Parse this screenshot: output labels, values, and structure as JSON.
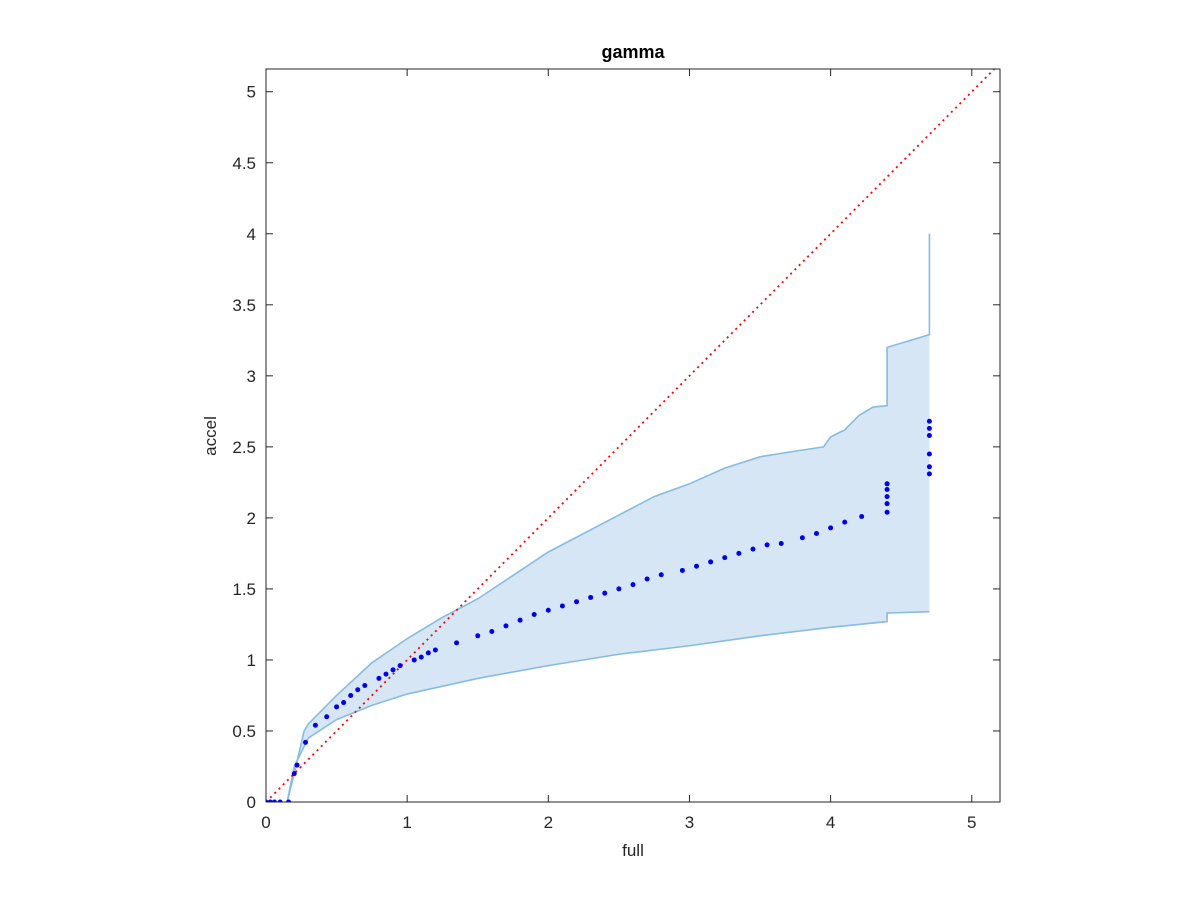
{
  "chart_data": {
    "type": "scatter",
    "title": "gamma",
    "x_label": "full",
    "y_label": "accel",
    "xlim": [
      0,
      5.2
    ],
    "ylim": [
      0,
      5.16
    ],
    "xticks": [
      0,
      1,
      2,
      3,
      4,
      5
    ],
    "yticks": [
      0,
      0.5,
      1,
      1.5,
      2,
      2.5,
      3,
      3.5,
      4,
      4.5,
      5
    ],
    "series": [
      {
        "type": "band",
        "color": "#86bce0",
        "fill": "#d6e6f4",
        "upper": {
          "x": [
            0.15,
            0.2,
            0.27,
            0.3,
            0.4,
            0.5,
            0.75,
            1.0,
            1.25,
            1.5,
            2.0,
            2.5,
            2.75,
            3.0,
            3.25,
            3.5,
            3.75,
            3.95,
            4.0,
            4.1,
            4.2,
            4.3,
            4.4,
            4.4,
            4.7,
            4.7
          ],
          "values": [
            0,
            0.2,
            0.5,
            0.55,
            0.65,
            0.75,
            0.98,
            1.15,
            1.3,
            1.43,
            1.76,
            2.02,
            2.15,
            2.24,
            2.35,
            2.43,
            2.47,
            2.5,
            2.57,
            2.62,
            2.72,
            2.78,
            2.79,
            3.2,
            3.29,
            4.0
          ]
        },
        "lower": {
          "x": [
            0.15,
            0.2,
            0.3,
            0.5,
            0.75,
            1.0,
            1.5,
            2.0,
            2.5,
            3.0,
            3.5,
            4.0,
            4.4,
            4.4,
            4.7
          ],
          "values": [
            0,
            0.25,
            0.45,
            0.58,
            0.68,
            0.76,
            0.87,
            0.96,
            1.04,
            1.1,
            1.17,
            1.23,
            1.27,
            1.33,
            1.34
          ]
        }
      },
      {
        "type": "line",
        "color": "#ff0000",
        "dotted": true,
        "x": [
          0,
          5.2
        ],
        "values": [
          0,
          5.2
        ]
      },
      {
        "type": "scatter",
        "color": "#0000ee",
        "x": [
          0,
          0.03,
          0.06,
          0.1,
          0.16,
          0.2,
          0.22,
          0.28,
          0.35,
          0.43,
          0.5,
          0.55,
          0.6,
          0.65,
          0.7,
          0.8,
          0.85,
          0.9,
          0.95,
          1.05,
          1.1,
          1.15,
          1.2,
          1.35,
          1.5,
          1.6,
          1.7,
          1.8,
          1.9,
          2.0,
          2.1,
          2.2,
          2.3,
          2.4,
          2.5,
          2.6,
          2.7,
          2.8,
          2.95,
          3.05,
          3.15,
          3.25,
          3.35,
          3.45,
          3.55,
          3.65,
          3.8,
          3.9,
          4.0,
          4.1,
          4.22,
          4.4,
          4.4,
          4.4,
          4.4,
          4.4,
          4.7,
          4.7,
          4.7,
          4.7,
          4.7,
          4.7
        ],
        "values": [
          0,
          0,
          0,
          0,
          0,
          0.2,
          0.26,
          0.42,
          0.54,
          0.6,
          0.67,
          0.7,
          0.75,
          0.79,
          0.82,
          0.87,
          0.9,
          0.93,
          0.96,
          1.0,
          1.02,
          1.05,
          1.07,
          1.12,
          1.17,
          1.2,
          1.24,
          1.28,
          1.32,
          1.35,
          1.38,
          1.41,
          1.44,
          1.47,
          1.5,
          1.53,
          1.57,
          1.6,
          1.63,
          1.66,
          1.69,
          1.72,
          1.75,
          1.78,
          1.81,
          1.82,
          1.86,
          1.89,
          1.93,
          1.97,
          2.01,
          2.04,
          2.1,
          2.15,
          2.2,
          2.24,
          2.31,
          2.36,
          2.45,
          2.58,
          2.63,
          2.68
        ]
      }
    ]
  }
}
